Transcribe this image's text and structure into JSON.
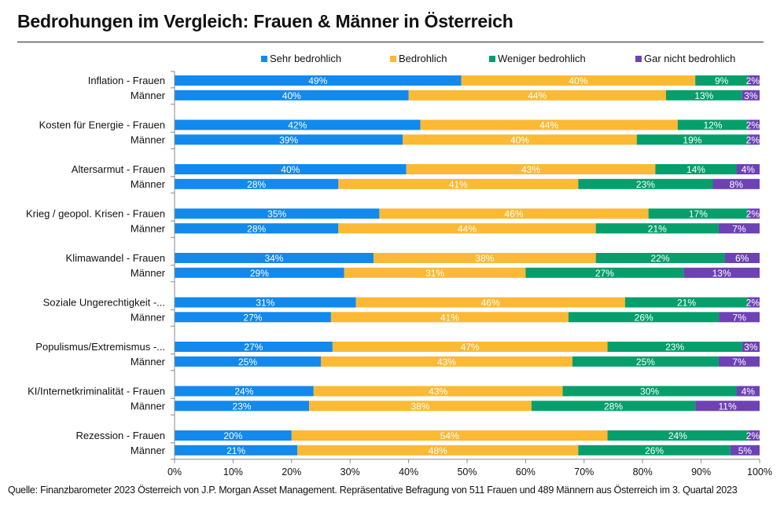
{
  "title": "Bedrohungen im Vergleich: Frauen & Männer in Österreich",
  "footnote": "Quelle: Finanzbarometer 2023 Österreich von J.P. Morgan Asset Management. Repräsentative Befragung von 511  Frauen und 489 Männern aus Österreich im 3. Quartal 2023",
  "legend": [
    {
      "label": "Sehr bedrohlich",
      "color": "#1289ED"
    },
    {
      "label": "Bedrohlich",
      "color": "#FBB934"
    },
    {
      "label": "Weniger bedrohlich",
      "color": "#069F6B"
    },
    {
      "label": "Gar nicht bedrohlich",
      "color": "#6C42B5"
    }
  ],
  "chart_data": {
    "type": "bar",
    "orientation": "horizontal",
    "stacked": true,
    "title": "Bedrohungen im Vergleich: Frauen & Männer in Österreich",
    "xlabel": "",
    "ylabel": "",
    "xlim": [
      0,
      100
    ],
    "x_ticks": [
      "0%",
      "10%",
      "20%",
      "30%",
      "40%",
      "50%",
      "60%",
      "70%",
      "80%",
      "90%",
      "100%"
    ],
    "legend_position": "top-right",
    "grid": false,
    "categories": [
      "Inflation - Frauen",
      "Männer",
      "Kosten für Energie - Frauen",
      "Männer",
      "Altersarmut - Frauen",
      "Männer",
      "Krieg / geopol. Krisen - Frauen",
      "Männer",
      "Klimawandel - Frauen",
      "Männer",
      "Soziale Ungerechtigkeit -...",
      "Männer",
      "Populismus/Extremismus -...",
      "Männer",
      "KI/Internetkriminalität - Frauen",
      "Männer",
      "Rezession - Frauen",
      "Männer"
    ],
    "series": [
      {
        "name": "Sehr bedrohlich",
        "color": "#1289ED",
        "values": [
          49,
          40,
          42,
          39,
          40,
          28,
          35,
          28,
          34,
          29,
          31,
          27,
          27,
          25,
          24,
          23,
          20,
          21
        ]
      },
      {
        "name": "Bedrohlich",
        "color": "#FBB934",
        "values": [
          40,
          44,
          44,
          40,
          43,
          41,
          46,
          44,
          38,
          31,
          46,
          41,
          47,
          43,
          43,
          38,
          54,
          48
        ]
      },
      {
        "name": "Weniger bedrohlich",
        "color": "#069F6B",
        "values": [
          9,
          13,
          12,
          19,
          14,
          23,
          17,
          21,
          22,
          27,
          21,
          26,
          23,
          25,
          30,
          28,
          24,
          26
        ]
      },
      {
        "name": "Gar nicht bedrohlich",
        "color": "#6C42B5",
        "values": [
          2,
          3,
          2,
          2,
          4,
          8,
          2,
          7,
          6,
          13,
          2,
          7,
          3,
          7,
          4,
          11,
          2,
          5
        ]
      }
    ]
  }
}
